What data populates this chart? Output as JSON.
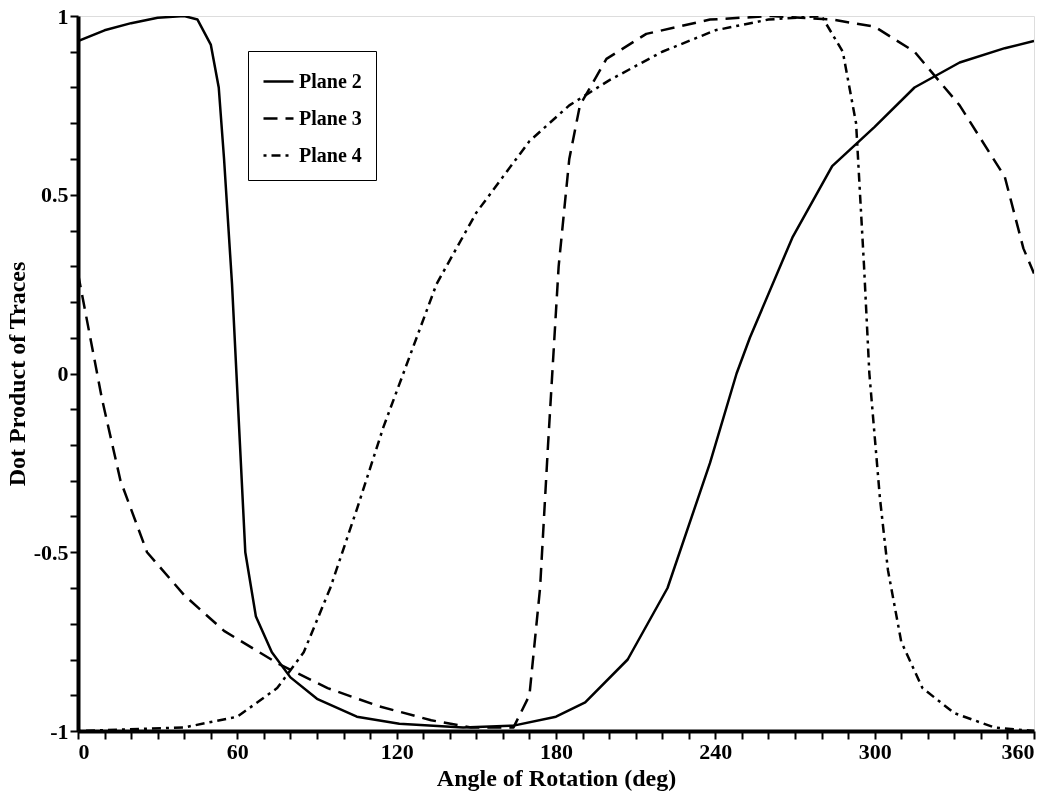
{
  "chart_data": {
    "type": "line",
    "xlabel": "Angle of Rotation (deg)",
    "ylabel": "Dot Product of Traces",
    "xlim": [
      0,
      360
    ],
    "ylim": [
      -1,
      1
    ],
    "xticks": [
      0,
      {
        "value": 10,
        "label": null
      },
      {
        "value": 20,
        "label": null
      },
      {
        "value": 30,
        "label": null
      },
      {
        "value": 40,
        "label": null
      },
      {
        "value": 50,
        "label": null
      },
      60,
      {
        "value": 70,
        "label": null
      },
      {
        "value": 80,
        "label": null
      },
      {
        "value": 90,
        "label": null
      },
      {
        "value": 100,
        "label": null
      },
      {
        "value": 110,
        "label": null
      },
      120,
      {
        "value": 130,
        "label": null
      },
      {
        "value": 140,
        "label": null
      },
      {
        "value": 150,
        "label": null
      },
      {
        "value": 160,
        "label": null
      },
      {
        "value": 170,
        "label": null
      },
      180,
      {
        "value": 190,
        "label": null
      },
      {
        "value": 200,
        "label": null
      },
      {
        "value": 210,
        "label": null
      },
      {
        "value": 220,
        "label": null
      },
      {
        "value": 230,
        "label": null
      },
      240,
      {
        "value": 250,
        "label": null
      },
      {
        "value": 260,
        "label": null
      },
      {
        "value": 270,
        "label": null
      },
      {
        "value": 280,
        "label": null
      },
      {
        "value": 290,
        "label": null
      },
      300,
      {
        "value": 310,
        "label": null
      },
      {
        "value": 320,
        "label": null
      },
      {
        "value": 330,
        "label": null
      },
      {
        "value": 340,
        "label": null
      },
      {
        "value": 350,
        "label": null
      },
      360
    ],
    "yticks": [
      -1,
      {
        "value": -0.9,
        "label": null
      },
      {
        "value": -0.8,
        "label": null
      },
      {
        "value": -0.7,
        "label": null
      },
      {
        "value": -0.6,
        "label": null
      },
      -0.5,
      {
        "value": -0.4,
        "label": null
      },
      {
        "value": -0.3,
        "label": null
      },
      {
        "value": -0.2,
        "label": null
      },
      {
        "value": -0.1,
        "label": null
      },
      0,
      {
        "value": 0.1,
        "label": null
      },
      {
        "value": 0.2,
        "label": null
      },
      {
        "value": 0.3,
        "label": null
      },
      {
        "value": 0.4,
        "label": null
      },
      0.5,
      {
        "value": 0.6,
        "label": null
      },
      {
        "value": 0.7,
        "label": null
      },
      {
        "value": 0.8,
        "label": null
      },
      {
        "value": 0.9,
        "label": null
      },
      1
    ],
    "grid": false,
    "legend": "top left",
    "series": [
      {
        "name": "Plane 2",
        "color": "#000000",
        "line_style": "solid",
        "x": [
          0,
          10,
          20,
          30,
          40,
          45,
          50,
          53,
          55,
          58,
          61,
          63,
          67,
          73,
          80,
          90,
          105,
          121,
          145,
          164,
          180,
          191,
          207,
          222,
          238,
          248,
          253,
          269,
          284,
          300,
          315,
          332,
          349,
          360
        ],
        "values": [
          0.93,
          0.96,
          0.98,
          0.995,
          1.0,
          0.99,
          0.92,
          0.8,
          0.6,
          0.25,
          -0.2,
          -0.5,
          -0.68,
          -0.78,
          -0.85,
          -0.91,
          -0.96,
          -0.98,
          -0.99,
          -0.985,
          -0.96,
          -0.92,
          -0.8,
          -0.6,
          -0.25,
          0.0,
          0.1,
          0.38,
          0.58,
          0.69,
          0.8,
          0.87,
          0.91,
          0.93
        ]
      },
      {
        "name": "Plane 3",
        "color": "#000000",
        "line_style": "dashed",
        "x": [
          0,
          9,
          16,
          26,
          40,
          55,
          75,
          94,
          113,
          133,
          148,
          164,
          170,
          174,
          177,
          181,
          185,
          189,
          199,
          214,
          238,
          261,
          284,
          300,
          315,
          332,
          349,
          356,
          360
        ],
        "values": [
          0.28,
          -0.07,
          -0.3,
          -0.5,
          -0.62,
          -0.72,
          -0.81,
          -0.88,
          -0.93,
          -0.97,
          -0.99,
          -0.99,
          -0.9,
          -0.6,
          -0.2,
          0.3,
          0.6,
          0.75,
          0.88,
          0.95,
          0.99,
          1.0,
          0.99,
          0.97,
          0.9,
          0.75,
          0.55,
          0.35,
          0.28
        ]
      },
      {
        "name": "Plane 4",
        "color": "#000000",
        "line_style": "dotted",
        "x": [
          0,
          40,
          60,
          75,
          85,
          95,
          105,
          115,
          125,
          135,
          150,
          160,
          170,
          185,
          200,
          220,
          240,
          260,
          280,
          288,
          293,
          296,
          298,
          302,
          305,
          310,
          318,
          330,
          345,
          360
        ],
        "values": [
          -1.0,
          -0.99,
          -0.96,
          -0.88,
          -0.78,
          -0.6,
          -0.38,
          -0.15,
          0.05,
          0.25,
          0.45,
          0.55,
          0.65,
          0.75,
          0.82,
          0.9,
          0.96,
          0.99,
          1.0,
          0.9,
          0.7,
          0.3,
          0.0,
          -0.35,
          -0.55,
          -0.75,
          -0.88,
          -0.95,
          -0.99,
          -1.0
        ]
      }
    ]
  }
}
